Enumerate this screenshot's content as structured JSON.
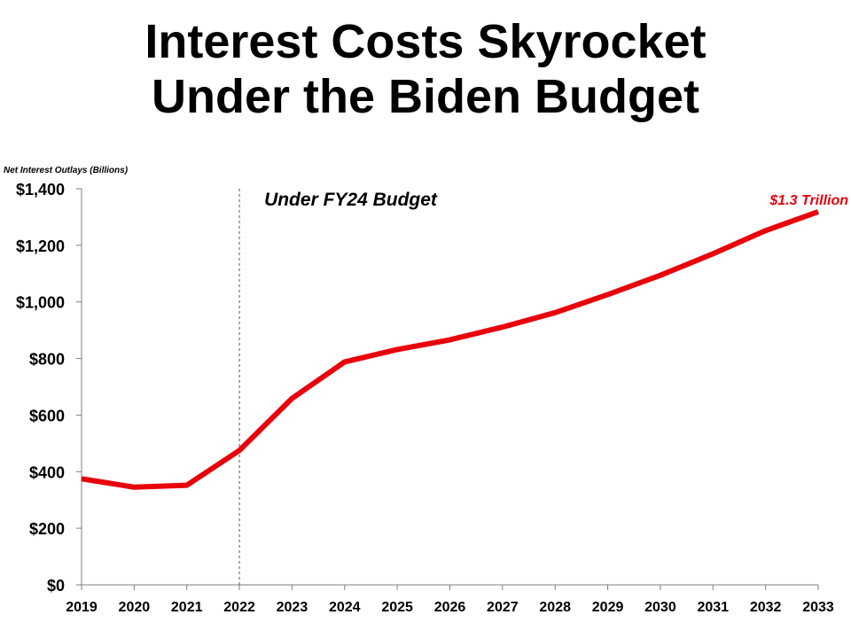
{
  "title_lines": [
    "Interest Costs Skyrocket",
    "Under the Biden Budget"
  ],
  "chart_data": {
    "type": "line",
    "title": "Interest Costs Skyrocket Under the Biden Budget",
    "ylabel": "Net Interest Outlays (Billions)",
    "xlabel": "",
    "categories": [
      "2019",
      "2020",
      "2021",
      "2022",
      "2023",
      "2024",
      "2025",
      "2026",
      "2027",
      "2028",
      "2029",
      "2030",
      "2031",
      "2032",
      "2033"
    ],
    "series": [
      {
        "values": [
          375,
          345,
          352,
          475,
          659,
          788,
          832,
          866,
          911,
          962,
          1026,
          1094,
          1170,
          1252,
          1319
        ]
      }
    ],
    "ylim": [
      0,
      1400
    ],
    "yticks": [
      0,
      200,
      400,
      600,
      800,
      1000,
      1200,
      1400
    ],
    "ytick_labels": [
      "$0",
      "$200",
      "$400",
      "$600",
      "$800",
      "$1,000",
      "$1,200",
      "$1,400"
    ],
    "grid": false,
    "legend": "none",
    "line_color": "#e8000b",
    "divider": {
      "x": "2022",
      "style": "dashed",
      "label": "Under FY24 Budget"
    },
    "end_label": "$1.3 Trillion"
  }
}
